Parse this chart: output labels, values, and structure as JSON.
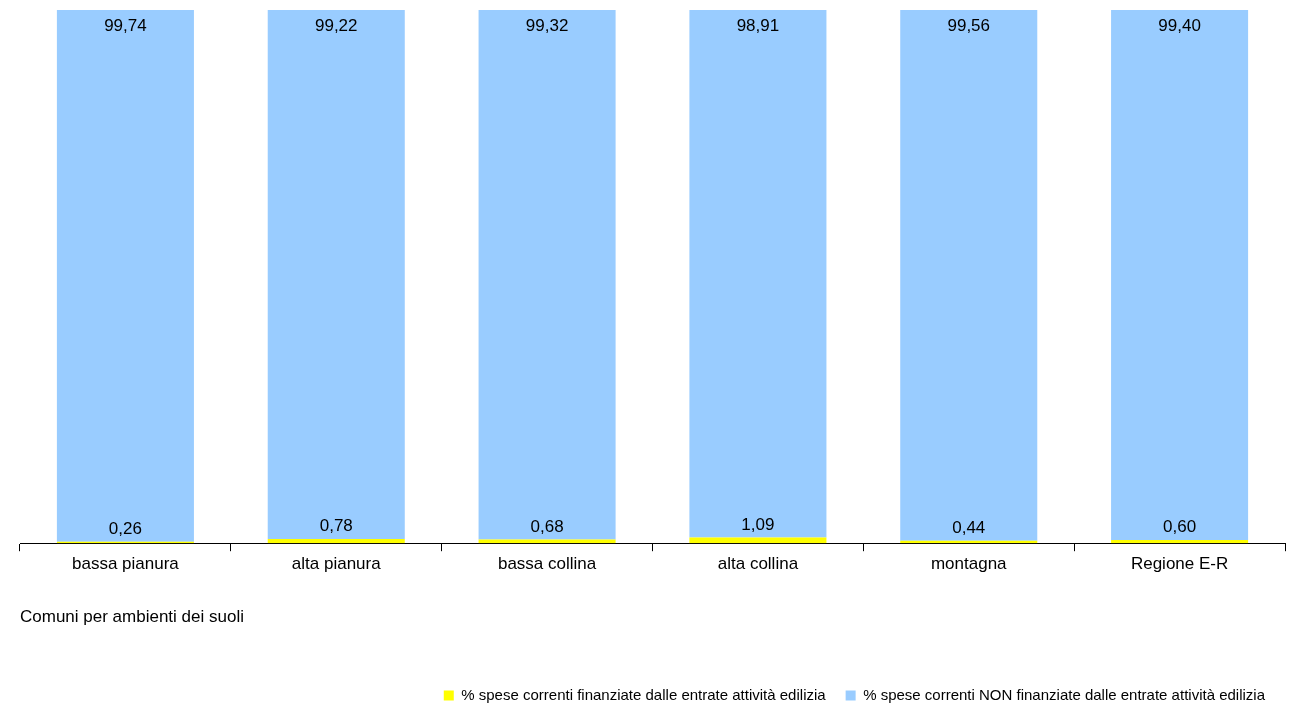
{
  "chart_data": {
    "type": "bar",
    "stacked": true,
    "xlabel": "Comuni per ambienti dei suoli",
    "categories": [
      "bassa pianura",
      "alta pianura",
      "bassa collina",
      "alta collina",
      "montagna",
      "Regione E-R"
    ],
    "series": [
      {
        "name": "% spese correnti finanziate dalle entrate attività edilizia",
        "color": "#ffff00",
        "values": [
          0.26,
          0.78,
          0.68,
          1.09,
          0.44,
          0.6
        ],
        "value_labels": [
          "0,26",
          "0,78",
          "0,68",
          "1,09",
          "0,44",
          "0,60"
        ]
      },
      {
        "name": "% spese correnti NON finanziate dalle entrate attività edilizia",
        "color": "#99ccff",
        "values": [
          99.74,
          99.22,
          99.32,
          98.91,
          99.56,
          99.4
        ],
        "value_labels": [
          "99,74",
          "99,22",
          "99,32",
          "98,91",
          "99,56",
          "99,40"
        ]
      }
    ],
    "tick_labels": "x",
    "grid": false,
    "legend": "bottom right"
  }
}
